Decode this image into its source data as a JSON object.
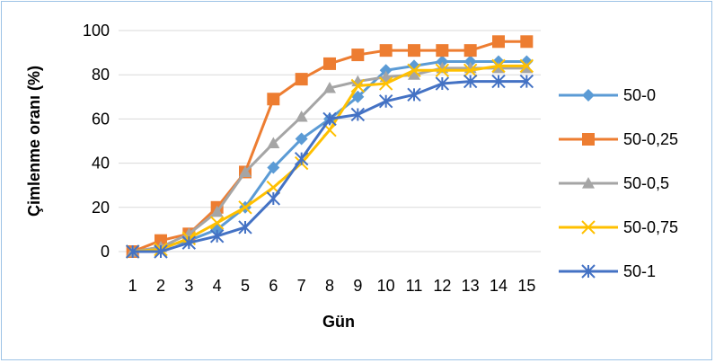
{
  "chart_data": {
    "type": "line",
    "title": "",
    "xlabel": "Gün",
    "ylabel": "Çimlenme oranı (%)",
    "x": [
      1,
      2,
      3,
      4,
      5,
      6,
      7,
      8,
      9,
      10,
      11,
      12,
      13,
      14,
      15
    ],
    "ylim": [
      0,
      100
    ],
    "yticks": [
      0,
      20,
      40,
      60,
      80,
      100
    ],
    "grid": "horizontal",
    "legend_position": "right",
    "series": [
      {
        "name": "50-0",
        "color": "#5b9bd5",
        "marker": "diamond",
        "values": [
          0,
          2,
          5,
          10,
          20,
          38,
          51,
          60,
          70,
          82,
          84,
          86,
          86,
          86,
          86
        ]
      },
      {
        "name": "50-0,25",
        "color": "#ed7d31",
        "marker": "square",
        "values": [
          0,
          5,
          8,
          20,
          36,
          69,
          78,
          85,
          89,
          91,
          91,
          91,
          91,
          95,
          95
        ]
      },
      {
        "name": "50-0,5",
        "color": "#a5a5a5",
        "marker": "triangle",
        "values": [
          0,
          2,
          8,
          18,
          36,
          49,
          61,
          74,
          77,
          79,
          80,
          83,
          83,
          83,
          83
        ]
      },
      {
        "name": "50-0,75",
        "color": "#ffc000",
        "marker": "x",
        "values": [
          0,
          1,
          6,
          13,
          20,
          29,
          40,
          55,
          75,
          76,
          82,
          82,
          82,
          84,
          84
        ]
      },
      {
        "name": "50-1",
        "color": "#4472c4",
        "marker": "star",
        "values": [
          0,
          0,
          4,
          7,
          11,
          24,
          42,
          60,
          62,
          68,
          71,
          76,
          77,
          77,
          77
        ]
      }
    ]
  }
}
